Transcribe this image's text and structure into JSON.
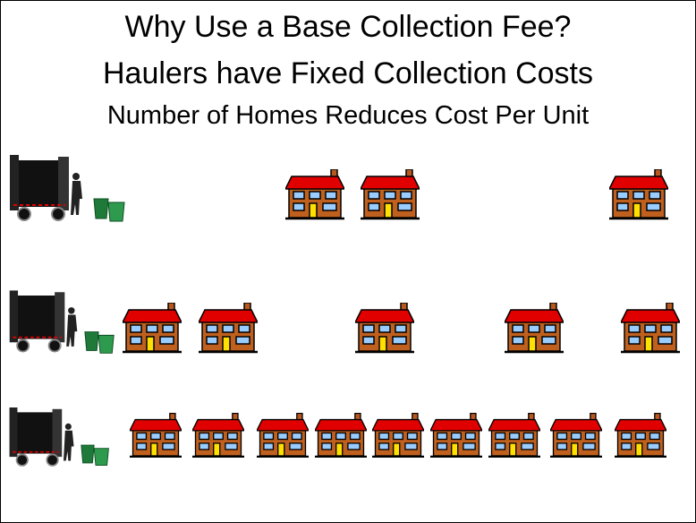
{
  "slide": {
    "title": "Why Use a Base Collection Fee?",
    "subtitle": "Haulers have Fixed Collection Costs",
    "caption": "Number of Homes Reduces Cost Per Unit"
  }
}
